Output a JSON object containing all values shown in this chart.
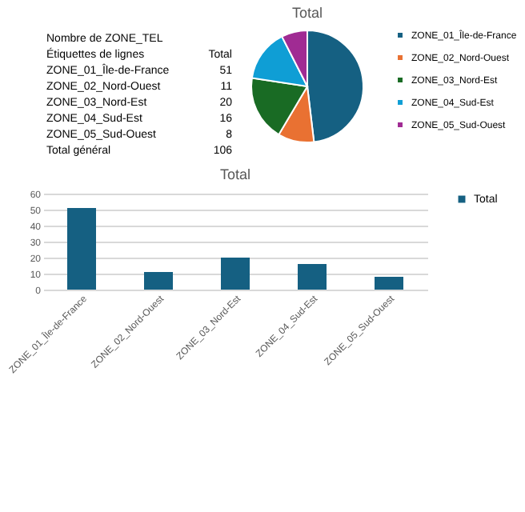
{
  "chart_data": [
    {
      "type": "other",
      "annotations": [
        "Nombre de ZONE_TEL",
        "Étiquettes de lignes",
        "Total",
        "ZONE_01_Île-de-France",
        "51",
        "ZONE_02_Nord-Ouest",
        "11",
        "ZONE_03_Nord-Est",
        "20",
        "ZONE_04_Sud-Est",
        "16",
        "ZONE_05_Sud-Ouest",
        "8",
        "Total général",
        "106"
      ]
    },
    {
      "type": "pie",
      "title": "Total",
      "categories": [
        "ZONE_01_Île-de-France",
        "ZONE_02_Nord-Ouest",
        "ZONE_03_Nord-Est",
        "ZONE_04_Sud-Est",
        "ZONE_05_Sud-Ouest"
      ],
      "values": [
        48.1,
        10.4,
        18.9,
        15.1,
        7.5
      ],
      "colors": [
        "#156082",
        "#e97132",
        "#196b24",
        "#0f9ed5",
        "#a02b93"
      ],
      "legend": "right"
    },
    {
      "type": "bar",
      "title": "Total",
      "categories": [
        "ZONE_01_Île-de-France",
        "ZONE_02_Nord-Ouest",
        "ZONE_03_Nord-Est",
        "ZONE_04_Sud-Est",
        "ZONE_05_Sud-Ouest"
      ],
      "series": [
        {
          "name": "Total",
          "color": "#156082",
          "values": [
            51,
            11,
            20,
            16,
            8
          ]
        }
      ],
      "ylim": [
        0,
        60
      ],
      "yticks": [
        0,
        10,
        20,
        30,
        40,
        50,
        60
      ],
      "grid": "y",
      "legend": "right"
    }
  ]
}
